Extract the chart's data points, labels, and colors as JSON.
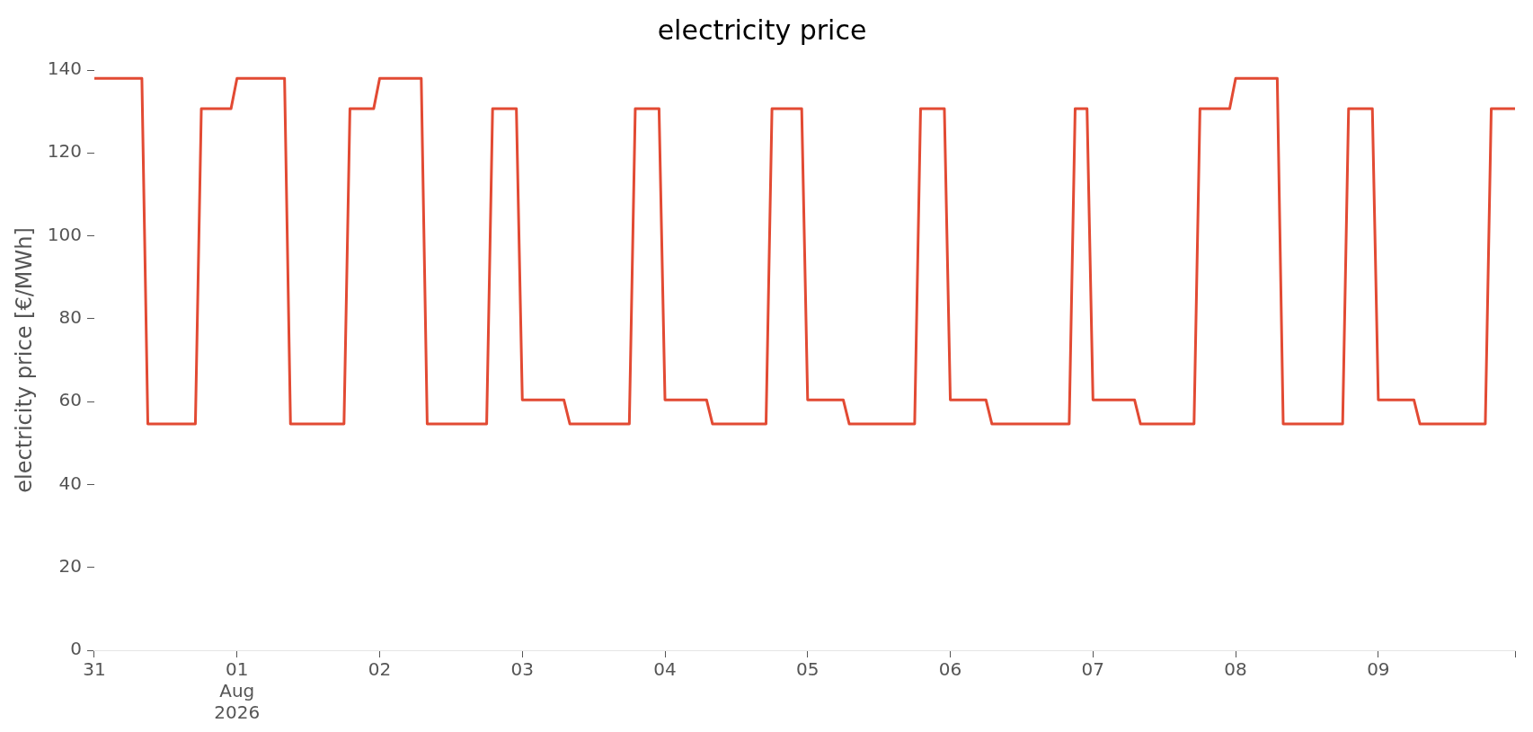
{
  "chart_data": {
    "type": "line",
    "title": "electricity price",
    "ylabel": "electricity price [€/MWh]",
    "x": [
      "2026-07-31T00:00",
      "2026-07-31T08:00",
      "2026-07-31T09:00",
      "2026-07-31T17:00",
      "2026-07-31T18:00",
      "2026-07-31T23:00",
      "2026-08-01T00:00",
      "2026-08-01T08:00",
      "2026-08-01T09:00",
      "2026-08-01T18:00",
      "2026-08-01T19:00",
      "2026-08-01T23:00",
      "2026-08-02T00:00",
      "2026-08-02T07:00",
      "2026-08-02T08:00",
      "2026-08-02T18:00",
      "2026-08-02T19:00",
      "2026-08-02T23:00",
      "2026-08-03T00:00",
      "2026-08-03T07:00",
      "2026-08-03T08:00",
      "2026-08-03T18:00",
      "2026-08-03T19:00",
      "2026-08-03T23:00",
      "2026-08-04T00:00",
      "2026-08-04T07:00",
      "2026-08-04T08:00",
      "2026-08-04T17:00",
      "2026-08-04T18:00",
      "2026-08-04T23:00",
      "2026-08-05T00:00",
      "2026-08-05T06:00",
      "2026-08-05T07:00",
      "2026-08-05T18:00",
      "2026-08-05T19:00",
      "2026-08-05T23:00",
      "2026-08-06T00:00",
      "2026-08-06T06:00",
      "2026-08-06T07:00",
      "2026-08-06T20:00",
      "2026-08-06T21:00",
      "2026-08-06T23:00",
      "2026-08-07T00:00",
      "2026-08-07T07:00",
      "2026-08-07T08:00",
      "2026-08-07T17:00",
      "2026-08-07T18:00",
      "2026-08-07T23:00",
      "2026-08-08T00:00",
      "2026-08-08T07:00",
      "2026-08-08T08:00",
      "2026-08-08T18:00",
      "2026-08-08T19:00",
      "2026-08-08T23:00",
      "2026-08-09T00:00",
      "2026-08-09T06:00",
      "2026-08-09T07:00",
      "2026-08-09T18:00",
      "2026-08-09T19:00",
      "2026-08-09T23:00"
    ],
    "series": [
      {
        "color": "#e24a33",
        "values": [
          138,
          138,
          54.6,
          54.6,
          130.7,
          130.7,
          138,
          138,
          54.6,
          54.6,
          130.7,
          130.7,
          138,
          138,
          54.6,
          54.6,
          130.7,
          130.7,
          60.4,
          60.4,
          54.6,
          54.6,
          130.7,
          130.7,
          60.4,
          60.4,
          54.6,
          54.6,
          130.7,
          130.7,
          60.4,
          60.4,
          54.6,
          54.6,
          130.7,
          130.7,
          60.4,
          60.4,
          54.6,
          54.6,
          130.7,
          130.7,
          60.4,
          60.4,
          54.6,
          54.6,
          130.7,
          130.7,
          138,
          138,
          54.6,
          54.6,
          130.7,
          130.7,
          60.4,
          60.4,
          54.6,
          54.6,
          130.7,
          130.7
        ]
      }
    ],
    "xticks": [
      {
        "value": "2026-07-31",
        "label": "31"
      },
      {
        "value": "2026-08-01",
        "label": "01\nAug\n2026"
      },
      {
        "value": "2026-08-02",
        "label": "02"
      },
      {
        "value": "2026-08-03",
        "label": "03"
      },
      {
        "value": "2026-08-04",
        "label": "04"
      },
      {
        "value": "2026-08-05",
        "label": "05"
      },
      {
        "value": "2026-08-06",
        "label": "06"
      },
      {
        "value": "2026-08-07",
        "label": "07"
      },
      {
        "value": "2026-08-08",
        "label": "08"
      },
      {
        "value": "2026-08-09",
        "label": "09"
      },
      {
        "value": "2026-08-09T23:00",
        "label": null
      }
    ],
    "xlim": [
      "2026-07-31T00:00",
      "2026-08-09T23:00"
    ],
    "ylim": [
      0,
      140
    ],
    "yticks": [
      0,
      20,
      40,
      60,
      80,
      100,
      120,
      140
    ],
    "grid": false,
    "legend": false,
    "marker": "none",
    "line_style": "solid"
  }
}
